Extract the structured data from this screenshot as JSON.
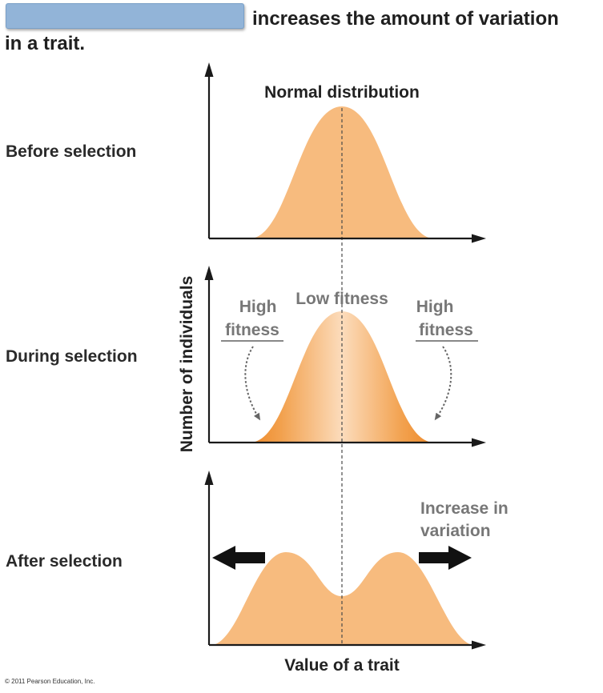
{
  "title": {
    "line1_suffix": "increases the amount of variation",
    "line2": "in a trait."
  },
  "diagram": {
    "y_axis_label": "Number of individuals",
    "x_axis_label": "Value of a trait",
    "panels": [
      {
        "label": "Before selection",
        "annotation": "Normal distribution"
      },
      {
        "label": "During selection",
        "left": "High fitness",
        "center": "Low fitness",
        "right": "High fitness"
      },
      {
        "label": "After selection",
        "annotation": "Increase in variation"
      }
    ]
  },
  "copyright": "© 2011 Pearson Education, Inc.",
  "colors": {
    "curve_fill": "#f7bb7e",
    "curve_edge": "#ef8a2c",
    "axis": "#1a1a1a",
    "annotation_gray": "#777777",
    "redaction_box": "#92b4d8"
  }
}
